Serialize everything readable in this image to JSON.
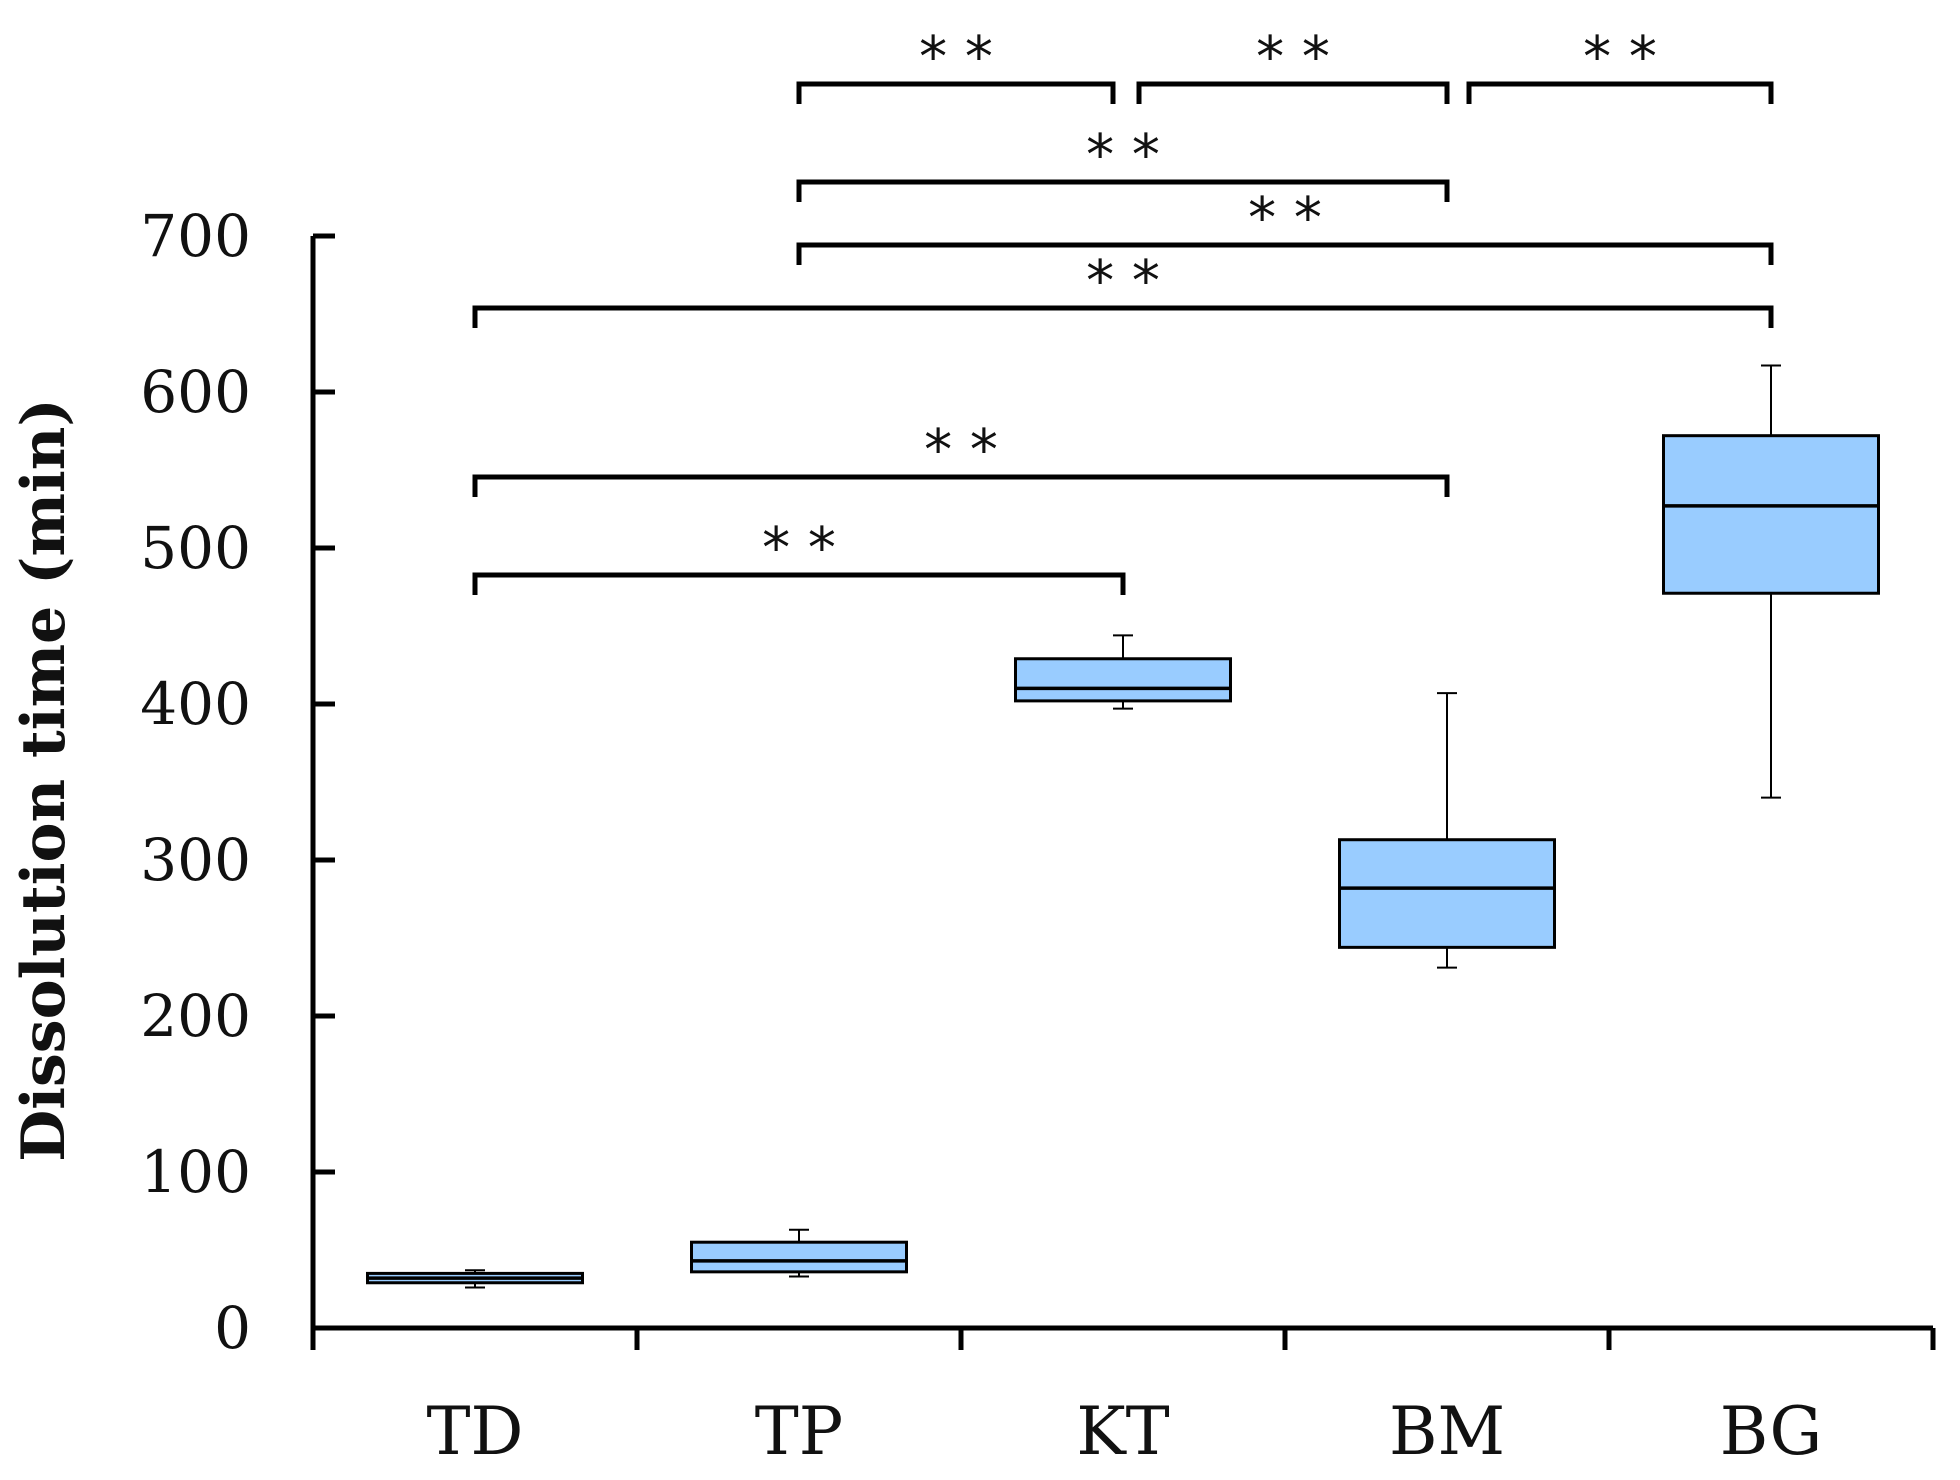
{
  "chart_data": {
    "type": "box",
    "title": "",
    "xlabel": "",
    "ylabel": "Dissolution time (min)",
    "ylim": [
      0,
      700
    ],
    "yticks": [
      0,
      100,
      200,
      300,
      400,
      500,
      600,
      700
    ],
    "categories": [
      "TD",
      "TP",
      "KT",
      "BM",
      "BG"
    ],
    "boxes": [
      {
        "category": "TD",
        "min": 26,
        "q1": 29,
        "median": 32,
        "q3": 35,
        "max": 37
      },
      {
        "category": "TP",
        "min": 33,
        "q1": 36,
        "median": 43,
        "q3": 55,
        "max": 63
      },
      {
        "category": "KT",
        "min": 397,
        "q1": 402,
        "median": 410,
        "q3": 429,
        "max": 444
      },
      {
        "category": "BM",
        "min": 231,
        "q1": 244,
        "median": 282,
        "q3": 313,
        "max": 407
      },
      {
        "category": "BG",
        "min": 340,
        "q1": 471,
        "median": 527,
        "q3": 572,
        "max": 617
      }
    ],
    "fill_color": "#99ccff",
    "significance": [
      {
        "from": "TD",
        "to": "KT",
        "label": "* *"
      },
      {
        "from": "TD",
        "to": "BM",
        "label": "* *"
      },
      {
        "from": "TD",
        "to": "BG",
        "label": "* *"
      },
      {
        "from": "TP",
        "to": "BG",
        "label": "* *"
      },
      {
        "from": "TP",
        "to": "BM",
        "label": "* *"
      },
      {
        "from": "TP",
        "to": "KT",
        "label": "* *"
      },
      {
        "from": "KT",
        "to": "BM",
        "label": "* *"
      },
      {
        "from": "BM",
        "to": "BG",
        "label": "* *"
      }
    ]
  }
}
